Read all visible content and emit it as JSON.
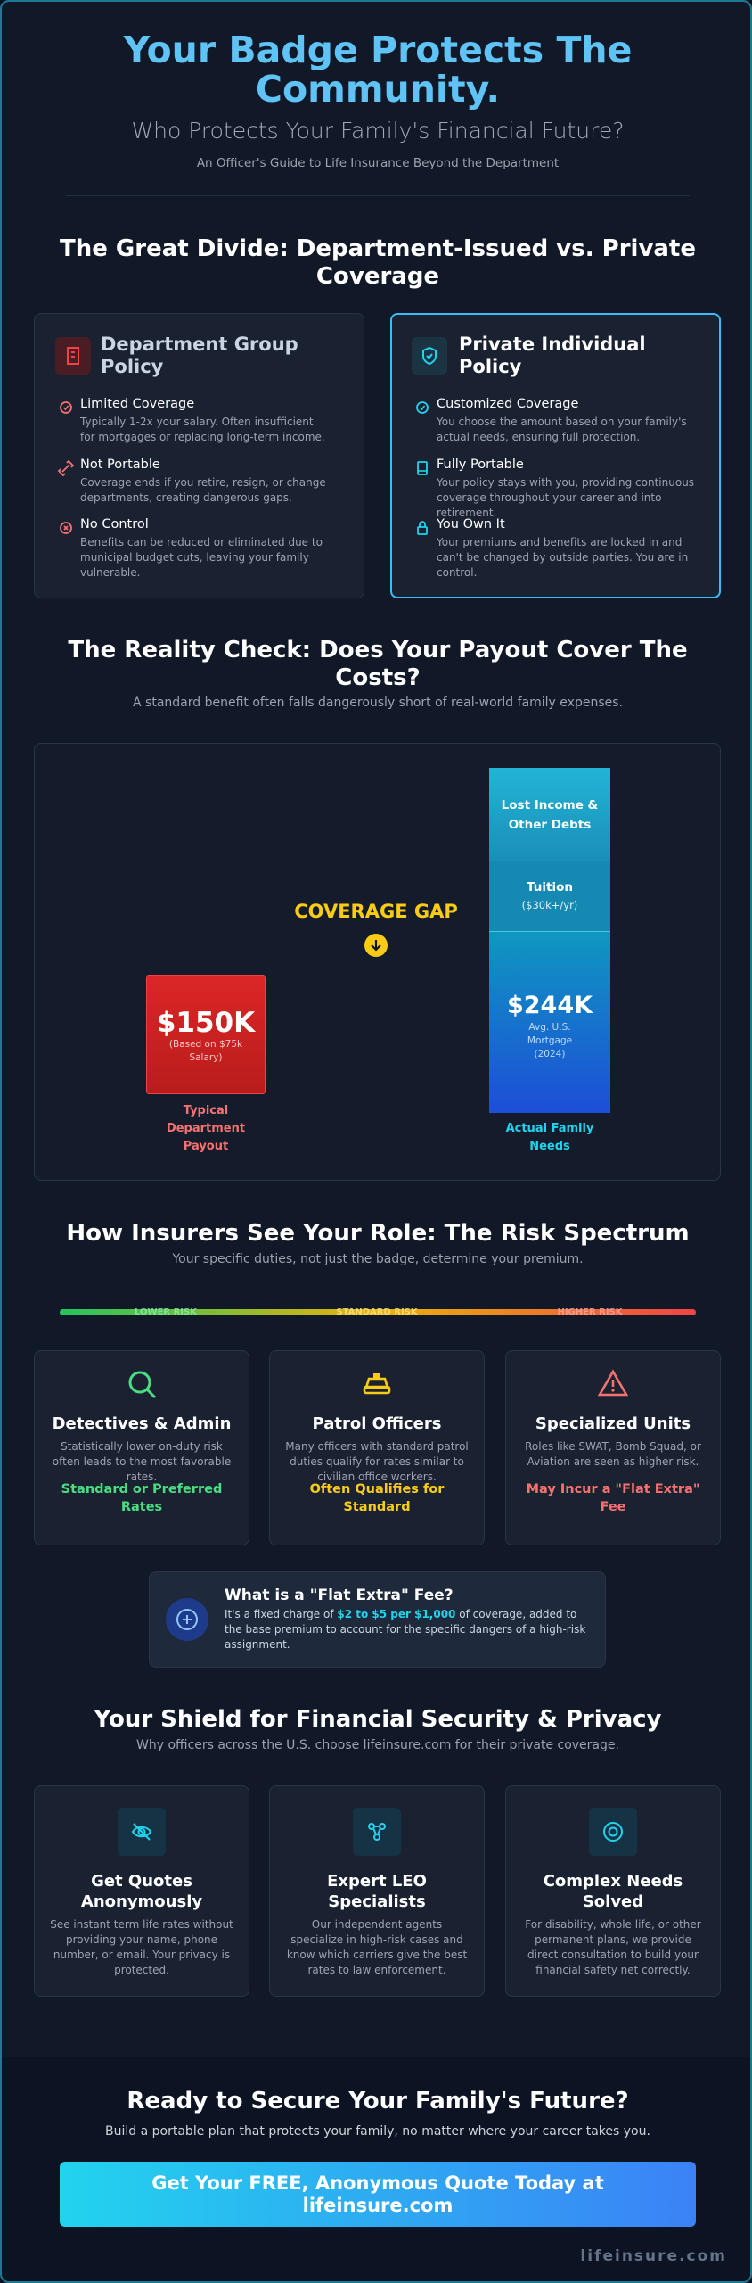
{
  "header": {
    "title": "Your Badge Protects The Community.",
    "subtitle": "Who Protects Your Family's Financial Future?",
    "tagline": "An Officer's Guide to Life Insurance Beyond the Department"
  },
  "divide": {
    "title": "The Great Divide: Department-Issued vs. Private Coverage",
    "department": {
      "title": "Department Group Policy",
      "items": [
        {
          "title": "Limited Coverage",
          "text": "Typically 1-2x your salary. Often insufficient for mortgages or replacing long-term income."
        },
        {
          "title": "Not Portable",
          "text": "Coverage ends if you retire, resign, or change departments, creating dangerous gaps."
        },
        {
          "title": "No Control",
          "text": "Benefits can be reduced or eliminated due to municipal budget cuts, leaving your family vulnerable."
        }
      ]
    },
    "private": {
      "title": "Private Individual Policy",
      "items": [
        {
          "title": "Customized Coverage",
          "text": "You choose the amount based on your family's actual needs, ensuring full protection."
        },
        {
          "title": "Fully Portable",
          "text": "Your policy stays with you, providing continuous coverage throughout your career and into retirement."
        },
        {
          "title": "You Own It",
          "text": "Your premiums and benefits are locked in and can't be changed by outside parties. You are in control."
        }
      ]
    }
  },
  "reality": {
    "title": "The Reality Check: Does Your Payout Cover The Costs?",
    "subtitle": "A standard benefit often falls dangerously short of real-world family expenses.",
    "gap_label": "COVERAGE GAP",
    "payout": {
      "amount": "$150K",
      "note": "(Based on $75k Salary)",
      "label": "Typical Department Payout"
    },
    "needs": {
      "segments": [
        {
          "title": "Lost Income & Other Debts"
        },
        {
          "title": "Tuition",
          "note": "($30k+/yr)"
        },
        {
          "title": "$244K",
          "note": "Avg. U.S. Mortgage (2024)"
        }
      ],
      "label": "Actual Family Needs"
    }
  },
  "risk": {
    "title": "How Insurers See Your Role: The Risk Spectrum",
    "subtitle": "Your specific duties, not just the badge, determine your premium.",
    "scale": [
      "LOWER RISK",
      "STANDARD RISK",
      "HIGHER RISK"
    ],
    "cards": [
      {
        "title": "Detectives & Admin",
        "text": "Statistically lower on-duty risk often leads to the most favorable rates.",
        "rating": "Standard or Preferred Rates"
      },
      {
        "title": "Patrol Officers",
        "text": "Many officers with standard patrol duties qualify for rates similar to civilian office workers.",
        "rating": "Often Qualifies for Standard"
      },
      {
        "title": "Specialized Units",
        "text": "Roles like SWAT, Bomb Squad, or Aviation are seen as higher risk.",
        "rating": "May Incur a \"Flat Extra\" Fee"
      }
    ],
    "flat_extra": {
      "title": "What is a \"Flat Extra\" Fee?",
      "text_before": "It's a fixed charge of ",
      "highlight": "$2 to $5 per $1,000",
      "text_after": " of coverage, added to the base premium to account for the specific dangers of a high-risk assignment."
    }
  },
  "shield": {
    "title": "Your Shield for Financial Security & Privacy",
    "subtitle": "Why officers across the U.S. choose lifeinsure.com for their private coverage.",
    "cards": [
      {
        "title": "Get Quotes Anonymously",
        "text": "See instant term life rates without providing your name, phone number, or email. Your privacy is protected."
      },
      {
        "title": "Expert LEO Specialists",
        "text": "Our independent agents specialize in high-risk cases and know which carriers give the best rates to law enforcement."
      },
      {
        "title": "Complex Needs Solved",
        "text": "For disability, whole life, or other permanent plans, we provide direct consultation to build your financial safety net correctly."
      }
    ]
  },
  "cta": {
    "title": "Ready to Secure Your Family's Future?",
    "subtitle": "Build a portable plan that protects your family, no matter where your career takes you.",
    "button": "Get Your FREE, Anonymous Quote Today at lifeinsure.com",
    "footer": "lifeinsure.com"
  }
}
